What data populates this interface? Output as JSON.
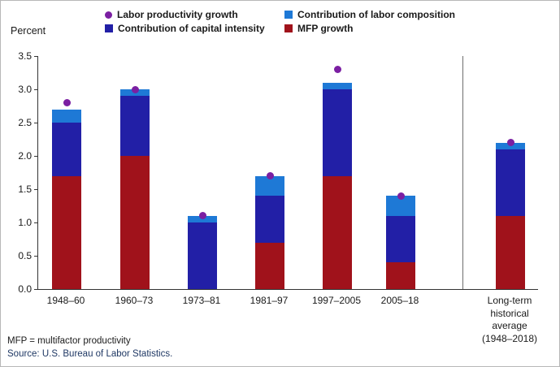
{
  "legend": {
    "items": [
      {
        "label": "Labor productivity growth",
        "marker": "dot",
        "color_key": "lp"
      },
      {
        "label": "Contribution of labor composition",
        "marker": "square",
        "color_key": "comp"
      },
      {
        "label": "Contribution of capital intensity",
        "marker": "square",
        "color_key": "capital"
      },
      {
        "label": "MFP growth",
        "marker": "square",
        "color_key": "mfp"
      }
    ]
  },
  "axis": {
    "y_title": "Percent"
  },
  "footnotes": {
    "mfp_note": "MFP = multifactor productivity",
    "source": "Source: U.S. Bureau of Labor Statistics."
  },
  "chart_data": {
    "type": "bar",
    "stacked": true,
    "title": "",
    "ylabel": "Percent",
    "xlabel": "",
    "ylim": [
      0,
      3.5
    ],
    "yticks": [
      "0.0",
      "0.5",
      "1.0",
      "1.5",
      "2.0",
      "2.5",
      "3.0",
      "3.5"
    ],
    "grid": false,
    "legend_position": "top",
    "separator_after_category_index": 5,
    "categories": [
      "1948–60",
      "1960–73",
      "1973–81",
      "1981–97",
      "1997–2005",
      "2005–18",
      "Long-term historical average (1948–2018)"
    ],
    "series": [
      {
        "name": "MFP growth",
        "key": "mfp",
        "values": [
          1.7,
          2.0,
          0.0,
          0.7,
          1.7,
          0.4,
          1.1
        ]
      },
      {
        "name": "Contribution of capital intensity",
        "key": "capital",
        "values": [
          0.8,
          0.9,
          1.0,
          0.7,
          1.3,
          0.7,
          1.0
        ]
      },
      {
        "name": "Contribution of labor composition",
        "key": "comp",
        "values": [
          0.2,
          0.1,
          0.1,
          0.3,
          0.1,
          0.3,
          0.1
        ]
      }
    ],
    "markers": {
      "name": "Labor productivity growth",
      "key": "lp",
      "values": [
        2.8,
        3.0,
        1.1,
        1.7,
        3.3,
        1.4,
        2.2
      ]
    },
    "colors": {
      "mfp": "#A0121B",
      "capital": "#221FA6",
      "comp": "#1E79D6",
      "lp": "#7B1FA2"
    }
  }
}
